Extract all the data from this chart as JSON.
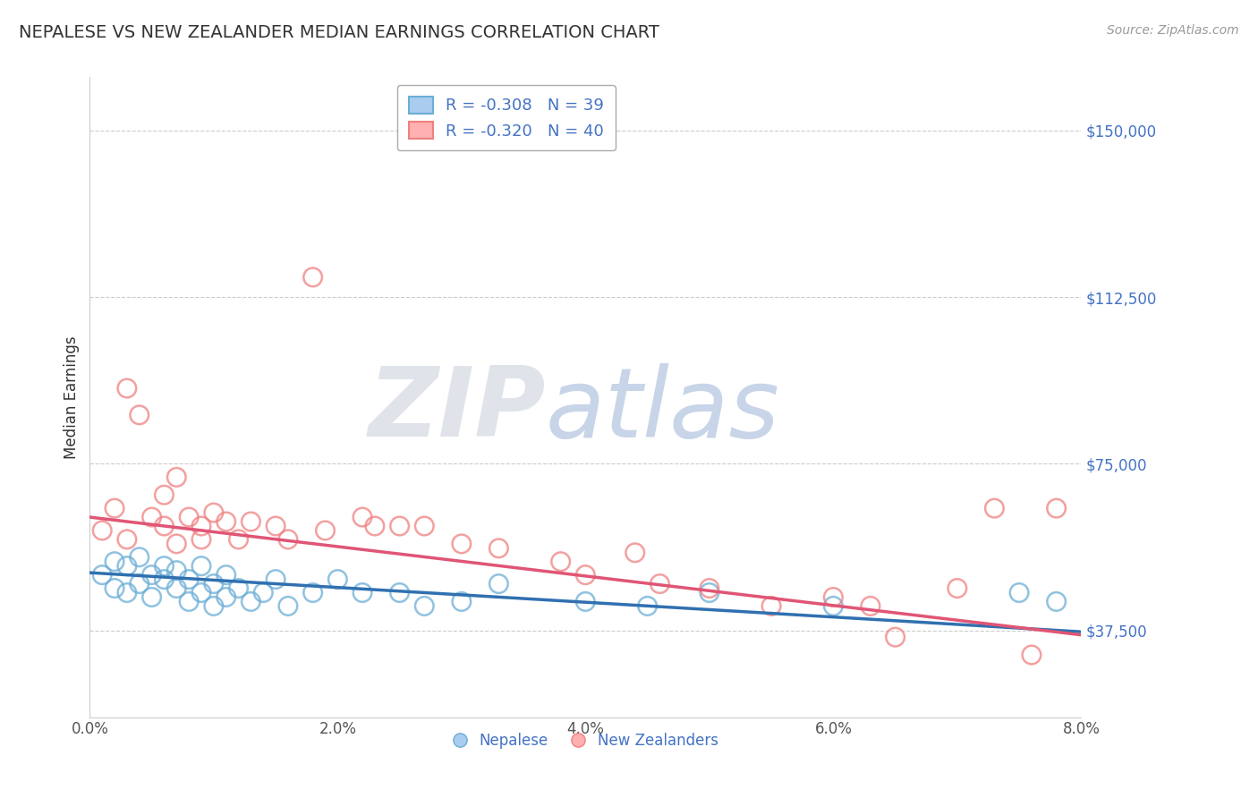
{
  "title": "NEPALESE VS NEW ZEALANDER MEDIAN EARNINGS CORRELATION CHART",
  "source_text": "Source: ZipAtlas.com",
  "ylabel": "Median Earnings",
  "xlim": [
    0.0,
    0.08
  ],
  "ylim": [
    18000,
    162000
  ],
  "yticks": [
    37500,
    75000,
    112500,
    150000
  ],
  "ytick_labels": [
    "$37,500",
    "$75,000",
    "$112,500",
    "$150,000"
  ],
  "xtick_labels": [
    "0.0%",
    "2.0%",
    "4.0%",
    "6.0%",
    "8.0%"
  ],
  "xticks": [
    0.0,
    0.02,
    0.04,
    0.06,
    0.08
  ],
  "legend_line1": "R = -0.308   N = 39",
  "legend_line2": "R = -0.320   N = 40",
  "legend_labels": [
    "Nepalese",
    "New Zealanders"
  ],
  "blue_color": "#6baed6",
  "pink_color": "#f08080",
  "blue_line_color": "#3070b0",
  "pink_line_color": "#e05575",
  "nepalese_x": [
    0.001,
    0.002,
    0.002,
    0.003,
    0.003,
    0.004,
    0.004,
    0.005,
    0.005,
    0.006,
    0.006,
    0.007,
    0.007,
    0.008,
    0.008,
    0.009,
    0.009,
    0.01,
    0.01,
    0.011,
    0.011,
    0.012,
    0.013,
    0.014,
    0.015,
    0.016,
    0.018,
    0.02,
    0.022,
    0.025,
    0.027,
    0.03,
    0.033,
    0.04,
    0.045,
    0.05,
    0.06,
    0.075,
    0.078
  ],
  "nepalese_y": [
    50000,
    47000,
    53000,
    46000,
    52000,
    48000,
    54000,
    45000,
    50000,
    49000,
    52000,
    47000,
    51000,
    44000,
    49000,
    46000,
    52000,
    43000,
    48000,
    45000,
    50000,
    47000,
    44000,
    46000,
    49000,
    43000,
    46000,
    49000,
    46000,
    46000,
    43000,
    44000,
    48000,
    44000,
    43000,
    46000,
    43000,
    46000,
    44000
  ],
  "nz_x": [
    0.001,
    0.002,
    0.003,
    0.003,
    0.004,
    0.005,
    0.006,
    0.006,
    0.007,
    0.007,
    0.008,
    0.009,
    0.009,
    0.01,
    0.011,
    0.012,
    0.013,
    0.015,
    0.016,
    0.018,
    0.019,
    0.022,
    0.023,
    0.025,
    0.027,
    0.03,
    0.033,
    0.038,
    0.04,
    0.044,
    0.046,
    0.05,
    0.055,
    0.06,
    0.063,
    0.065,
    0.07,
    0.073,
    0.076,
    0.078
  ],
  "nz_y": [
    60000,
    65000,
    58000,
    92000,
    86000,
    63000,
    61000,
    68000,
    57000,
    72000,
    63000,
    61000,
    58000,
    64000,
    62000,
    58000,
    62000,
    61000,
    58000,
    117000,
    60000,
    63000,
    61000,
    61000,
    61000,
    57000,
    56000,
    53000,
    50000,
    55000,
    48000,
    47000,
    43000,
    45000,
    43000,
    36000,
    47000,
    65000,
    32000,
    65000
  ]
}
